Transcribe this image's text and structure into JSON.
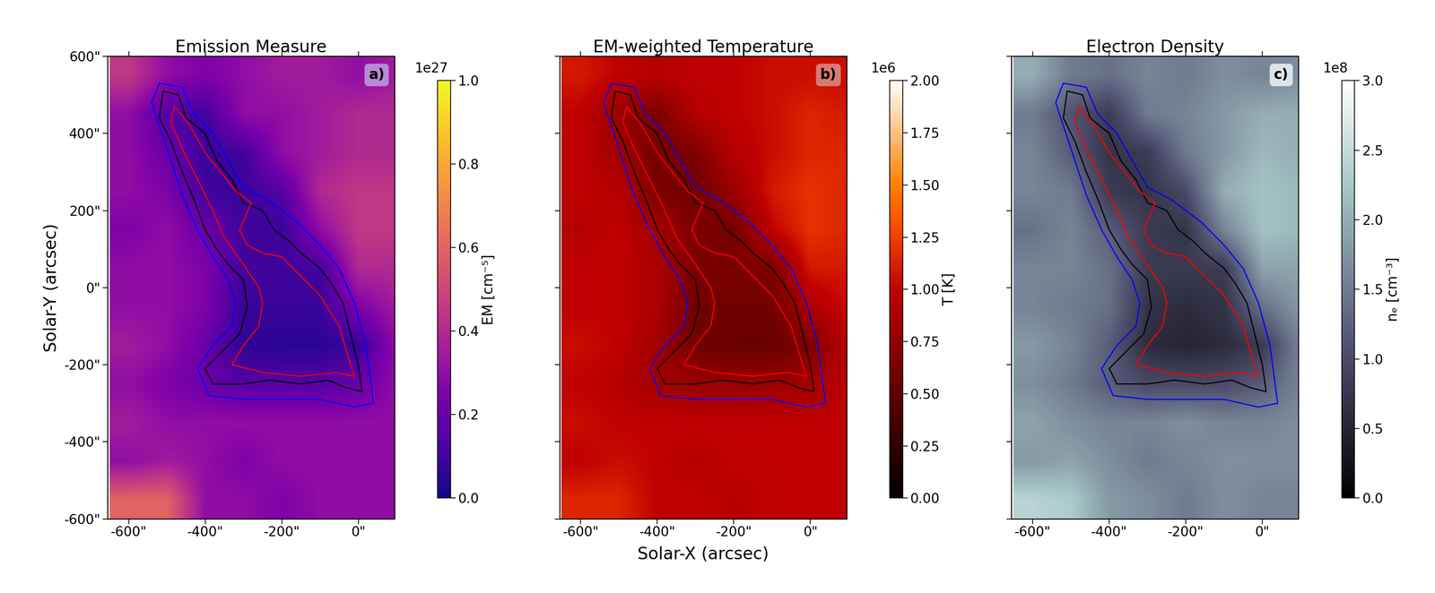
{
  "chart_data": [
    {
      "type": "heatmap",
      "title": "Emission Measure",
      "tag": "a)",
      "ylabel": "Solar-Y (arcsec)",
      "color": "plasma",
      "xlim": [
        -655,
        95
      ],
      "ylim": [
        -600,
        600
      ],
      "xticks": [
        {
          "value": -600,
          "label": "-600\""
        },
        {
          "value": -400,
          "label": "-400\""
        },
        {
          "value": -200,
          "label": "-200\""
        },
        {
          "value": 0,
          "label": "0\""
        }
      ],
      "yticks": [
        {
          "value": -600,
          "label": "-600\""
        },
        {
          "value": -400,
          "label": "-400\""
        },
        {
          "value": -200,
          "label": "-200\""
        },
        {
          "value": 0,
          "label": "0\""
        },
        {
          "value": 200,
          "label": "200\""
        },
        {
          "value": 400,
          "label": "400\""
        },
        {
          "value": 600,
          "label": "600\""
        }
      ],
      "x": [
        -600,
        -500,
        -400,
        -300,
        -200,
        -100,
        0,
        100
      ],
      "y": [
        550,
        450,
        350,
        250,
        150,
        50,
        -50,
        -150,
        -250,
        -350,
        -450,
        -550
      ],
      "cells": [
        [
          0.45,
          0.3,
          0.25,
          0.3,
          0.35,
          0.35,
          0.3,
          0.35
        ],
        [
          0.3,
          0.15,
          0.1,
          0.3,
          0.3,
          0.35,
          0.4,
          0.4
        ],
        [
          0.3,
          0.2,
          0.08,
          0.1,
          0.3,
          0.35,
          0.4,
          0.4
        ],
        [
          0.3,
          0.25,
          0.1,
          0.08,
          0.15,
          0.4,
          0.45,
          0.45
        ],
        [
          0.25,
          0.3,
          0.2,
          0.1,
          0.08,
          0.3,
          0.45,
          0.45
        ],
        [
          0.3,
          0.3,
          0.25,
          0.1,
          0.1,
          0.1,
          0.4,
          0.4
        ],
        [
          0.3,
          0.3,
          0.25,
          0.08,
          0.08,
          0.08,
          0.25,
          0.35
        ],
        [
          0.35,
          0.3,
          0.2,
          0.06,
          0.05,
          0.05,
          0.08,
          0.3
        ],
        [
          0.3,
          0.25,
          0.2,
          0.15,
          0.15,
          0.15,
          0.2,
          0.3
        ],
        [
          0.35,
          0.3,
          0.3,
          0.3,
          0.3,
          0.3,
          0.3,
          0.3
        ],
        [
          0.3,
          0.35,
          0.3,
          0.25,
          0.3,
          0.3,
          0.3,
          0.3
        ],
        [
          0.6,
          0.6,
          0.3,
          0.3,
          0.25,
          0.3,
          0.3,
          0.3
        ]
      ],
      "colorbar": {
        "label": "EM [cm⁻⁵]",
        "multiplier": "1e27",
        "clim": [
          0.0,
          1.0
        ],
        "ticks": [
          0.0,
          0.2,
          0.4,
          0.6,
          0.8,
          1.0
        ]
      }
    },
    {
      "type": "heatmap",
      "title": "EM-weighted Temperature",
      "tag": "b)",
      "xlabel": "Solar-X (arcsec)",
      "color": "gist_heat",
      "tick_labels": "x",
      "xlim": [
        -655,
        95
      ],
      "ylim": [
        -600,
        600
      ],
      "xticks": [
        {
          "value": -600,
          "label": "-600\""
        },
        {
          "value": -400,
          "label": "-400\""
        },
        {
          "value": -200,
          "label": "-200\""
        },
        {
          "value": 0,
          "label": "0\""
        }
      ],
      "yticks": [
        -600,
        -400,
        -200,
        0,
        200,
        400,
        600
      ],
      "x": [
        -600,
        -500,
        -400,
        -300,
        -200,
        -100,
        0,
        100
      ],
      "y": [
        550,
        450,
        350,
        250,
        150,
        50,
        -50,
        -150,
        -250,
        -350,
        -450,
        -550
      ],
      "cells": [
        [
          1.1,
          1.0,
          0.95,
          1.0,
          1.0,
          1.05,
          1.05,
          1.05
        ],
        [
          1.0,
          0.8,
          0.65,
          0.95,
          1.0,
          1.05,
          1.15,
          1.1
        ],
        [
          1.0,
          0.85,
          0.6,
          0.65,
          0.95,
          1.05,
          1.15,
          1.15
        ],
        [
          1.0,
          0.95,
          0.65,
          0.6,
          0.8,
          1.1,
          1.2,
          1.15
        ],
        [
          0.95,
          1.0,
          0.85,
          0.65,
          0.6,
          1.0,
          1.2,
          1.15
        ],
        [
          1.0,
          1.0,
          0.9,
          0.65,
          0.65,
          0.65,
          1.1,
          1.1
        ],
        [
          1.0,
          1.0,
          0.9,
          0.6,
          0.6,
          0.6,
          0.9,
          1.05
        ],
        [
          1.05,
          1.0,
          0.85,
          0.6,
          0.55,
          0.55,
          0.65,
          1.0
        ],
        [
          1.0,
          0.95,
          0.85,
          0.8,
          0.8,
          0.8,
          0.85,
          1.0
        ],
        [
          1.05,
          1.0,
          1.0,
          1.0,
          1.0,
          1.0,
          1.0,
          1.0
        ],
        [
          1.0,
          1.05,
          1.0,
          0.95,
          1.0,
          1.0,
          1.0,
          1.0
        ],
        [
          1.15,
          1.15,
          1.0,
          1.0,
          0.95,
          1.0,
          1.0,
          1.0
        ]
      ],
      "colorbar": {
        "label": "T [K]",
        "multiplier": "1e6",
        "clim": [
          0.0,
          2.0
        ],
        "ticks": [
          {
            "value": 0.0,
            "label": "0.00"
          },
          {
            "value": 0.25,
            "label": "0.25"
          },
          {
            "value": 0.5,
            "label": "0.50"
          },
          {
            "value": 0.75,
            "label": "0.75"
          },
          {
            "value": 1.0,
            "label": "1.00"
          },
          {
            "value": 1.25,
            "label": "1.25"
          },
          {
            "value": 1.5,
            "label": "1.50"
          },
          {
            "value": 1.75,
            "label": "1.75"
          },
          {
            "value": 2.0,
            "label": "2.00"
          }
        ]
      }
    },
    {
      "type": "heatmap",
      "title": "Electron Density",
      "tag": "c)",
      "color": "bone",
      "tick_labels": "x",
      "xlim": [
        -655,
        95
      ],
      "ylim": [
        -600,
        600
      ],
      "xticks": [
        {
          "value": -600,
          "label": "-600\""
        },
        {
          "value": -400,
          "label": "-400\""
        },
        {
          "value": -200,
          "label": "-200\""
        },
        {
          "value": 0,
          "label": "0\""
        }
      ],
      "yticks": [
        -600,
        -400,
        -200,
        0,
        200,
        400,
        600
      ],
      "x": [
        -600,
        -500,
        -400,
        -300,
        -200,
        -100,
        0,
        100
      ],
      "y": [
        550,
        450,
        350,
        250,
        150,
        50,
        -50,
        -150,
        -250,
        -350,
        -450,
        -550
      ],
      "cells": [
        [
          2.0,
          1.5,
          1.4,
          1.6,
          1.5,
          1.7,
          1.6,
          1.7
        ],
        [
          1.5,
          1.1,
          0.8,
          1.5,
          1.6,
          1.8,
          2.0,
          2.0
        ],
        [
          1.6,
          1.2,
          0.7,
          0.8,
          1.5,
          1.8,
          2.1,
          2.0
        ],
        [
          1.6,
          1.5,
          0.8,
          0.7,
          1.0,
          2.0,
          2.2,
          2.1
        ],
        [
          1.4,
          1.6,
          1.2,
          0.8,
          0.7,
          1.6,
          2.2,
          2.1
        ],
        [
          1.6,
          1.6,
          1.4,
          0.8,
          0.8,
          0.8,
          1.9,
          1.9
        ],
        [
          1.6,
          1.5,
          1.4,
          0.7,
          0.6,
          0.7,
          1.4,
          1.8
        ],
        [
          1.8,
          1.6,
          1.2,
          0.6,
          0.5,
          0.6,
          0.8,
          1.6
        ],
        [
          1.7,
          1.5,
          1.2,
          1.0,
          1.0,
          1.0,
          1.2,
          1.6
        ],
        [
          1.9,
          1.7,
          1.6,
          1.6,
          1.7,
          1.6,
          1.6,
          1.7
        ],
        [
          1.8,
          1.9,
          1.7,
          1.5,
          1.6,
          1.7,
          1.7,
          1.7
        ],
        [
          2.4,
          2.3,
          1.8,
          1.7,
          1.5,
          1.7,
          1.6,
          1.6
        ]
      ],
      "colorbar": {
        "label": "nₑ [cm⁻³]",
        "multiplier": "1e8",
        "clim": [
          0.0,
          3.0
        ],
        "ticks": [
          0.0,
          0.5,
          1.0,
          1.5,
          2.0,
          2.5,
          3.0
        ]
      }
    }
  ],
  "contours": [
    {
      "color": "blue",
      "x": [
        -520,
        -460,
        -430,
        -380,
        -340,
        -300,
        -240,
        -160,
        -100,
        -50,
        -10,
        20,
        40,
        -10,
        -100,
        -200,
        -300,
        -390,
        -420,
        -380,
        -330,
        -320,
        -340,
        -380,
        -420,
        -460,
        -490,
        -520,
        -540
      ],
      "y": [
        530,
        520,
        450,
        400,
        330,
        260,
        230,
        170,
        110,
        50,
        -40,
        -150,
        -300,
        -310,
        -290,
        -290,
        -290,
        -280,
        -210,
        -150,
        -100,
        -40,
        20,
        80,
        150,
        240,
        330,
        420,
        480
      ]
    },
    {
      "color": "black",
      "x": [
        -510,
        -470,
        -450,
        -400,
        -370,
        -330,
        -300,
        -250,
        -220,
        -180,
        -150,
        -100,
        -70,
        -40,
        -20,
        0,
        10,
        -30,
        -80,
        -150,
        -230,
        -300,
        -380,
        -400,
        -360,
        -310,
        -290,
        -300,
        -340,
        -370,
        -400,
        -430,
        -460,
        -490,
        -520
      ],
      "y": [
        510,
        500,
        440,
        400,
        330,
        280,
        220,
        200,
        150,
        120,
        90,
        50,
        10,
        -40,
        -120,
        -200,
        -270,
        -260,
        -240,
        -250,
        -240,
        -250,
        -250,
        -210,
        -170,
        -120,
        -50,
        20,
        60,
        100,
        150,
        230,
        300,
        380,
        440
      ]
    },
    {
      "color": "red",
      "x": [
        -480,
        -440,
        -400,
        -360,
        -320,
        -280,
        -310,
        -290,
        -250,
        -200,
        -150,
        -100,
        -50,
        -20,
        -10,
        -60,
        -150,
        -250,
        -330,
        -300,
        -260,
        -250,
        -260,
        -300,
        -350,
        -380,
        -420,
        -460,
        -490
      ],
      "y": [
        470,
        420,
        350,
        300,
        250,
        220,
        150,
        110,
        90,
        80,
        30,
        -20,
        -100,
        -200,
        -230,
        -220,
        -230,
        -220,
        -200,
        -150,
        -100,
        -40,
        0,
        60,
        130,
        200,
        280,
        360,
        430
      ]
    }
  ]
}
